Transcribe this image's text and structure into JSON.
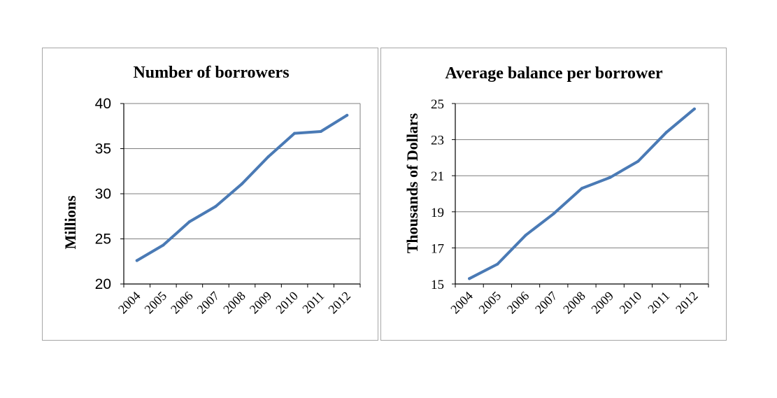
{
  "chart_data": [
    {
      "type": "line",
      "title": "Number of borrowers",
      "xlabel": "",
      "ylabel": "Millions",
      "categories": [
        "2004",
        "2005",
        "2006",
        "2007",
        "2008",
        "2009",
        "2010",
        "2011",
        "2012"
      ],
      "series": [
        {
          "values": [
            22.6,
            24.3,
            26.9,
            28.6,
            31.1,
            34.1,
            36.7,
            36.9,
            38.7
          ]
        }
      ],
      "ylim": [
        20,
        40
      ],
      "yticks": [
        "20",
        "25",
        "30",
        "35",
        "40"
      ],
      "grid": true,
      "color": "#4a7ab5"
    },
    {
      "type": "line",
      "title": "Average balance per borrower",
      "xlabel": "",
      "ylabel": "Thousands of Dollars",
      "categories": [
        "2004",
        "2005",
        "2006",
        "2007",
        "2008",
        "2009",
        "2010",
        "2011",
        "2012"
      ],
      "series": [
        {
          "values": [
            15.3,
            16.1,
            17.7,
            18.9,
            20.3,
            20.9,
            21.8,
            23.4,
            24.7
          ]
        }
      ],
      "ylim": [
        15,
        25
      ],
      "yticks": [
        "15",
        "17",
        "19",
        "21",
        "23",
        "25"
      ],
      "grid": true,
      "color": "#4a7ab5"
    }
  ]
}
